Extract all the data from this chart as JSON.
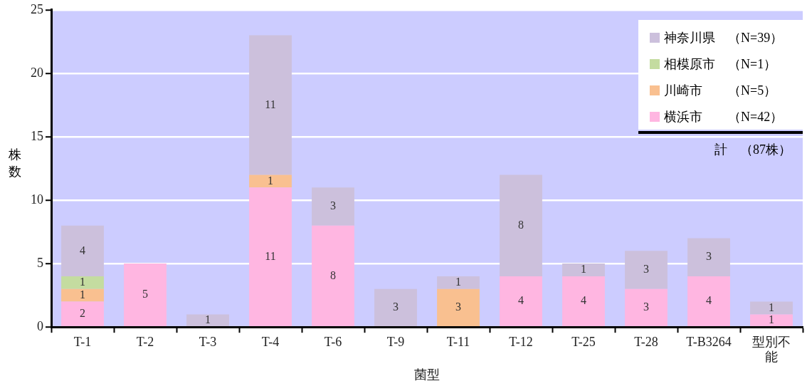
{
  "chart_data": {
    "type": "bar",
    "xlabel": "菌型",
    "ylabel": "株数",
    "categories": [
      "T-1",
      "T-2",
      "T-3",
      "T-4",
      "T-6",
      "T-9",
      "T-11",
      "T-12",
      "T-25",
      "T-28",
      "T-B3264",
      "型別不能"
    ],
    "series": [
      {
        "name": "横浜市　　（N=42）",
        "color": "#ffb6e1",
        "values": [
          2,
          5,
          null,
          11,
          8,
          null,
          null,
          4,
          4,
          3,
          4,
          1
        ]
      },
      {
        "name": "川崎市　　（N=5）",
        "color": "#f9c090",
        "values": [
          1,
          null,
          null,
          1,
          null,
          null,
          3,
          null,
          null,
          null,
          null,
          null
        ]
      },
      {
        "name": "相模原市　（N=1）",
        "color": "#c4dca0",
        "values": [
          1,
          null,
          null,
          null,
          null,
          null,
          null,
          null,
          null,
          null,
          null,
          null
        ]
      },
      {
        "name": "神奈川県　（N=39）",
        "color": "#ccc0dc",
        "values": [
          4,
          null,
          1,
          11,
          3,
          3,
          1,
          8,
          1,
          3,
          3,
          1
        ]
      }
    ],
    "stacked": true,
    "ylim": [
      0,
      25
    ],
    "yticks": [
      0,
      5,
      10,
      15,
      20,
      25
    ],
    "grid": "y",
    "legend": "top right",
    "data_labels": true,
    "annotations": [
      "計　（87株）"
    ]
  }
}
